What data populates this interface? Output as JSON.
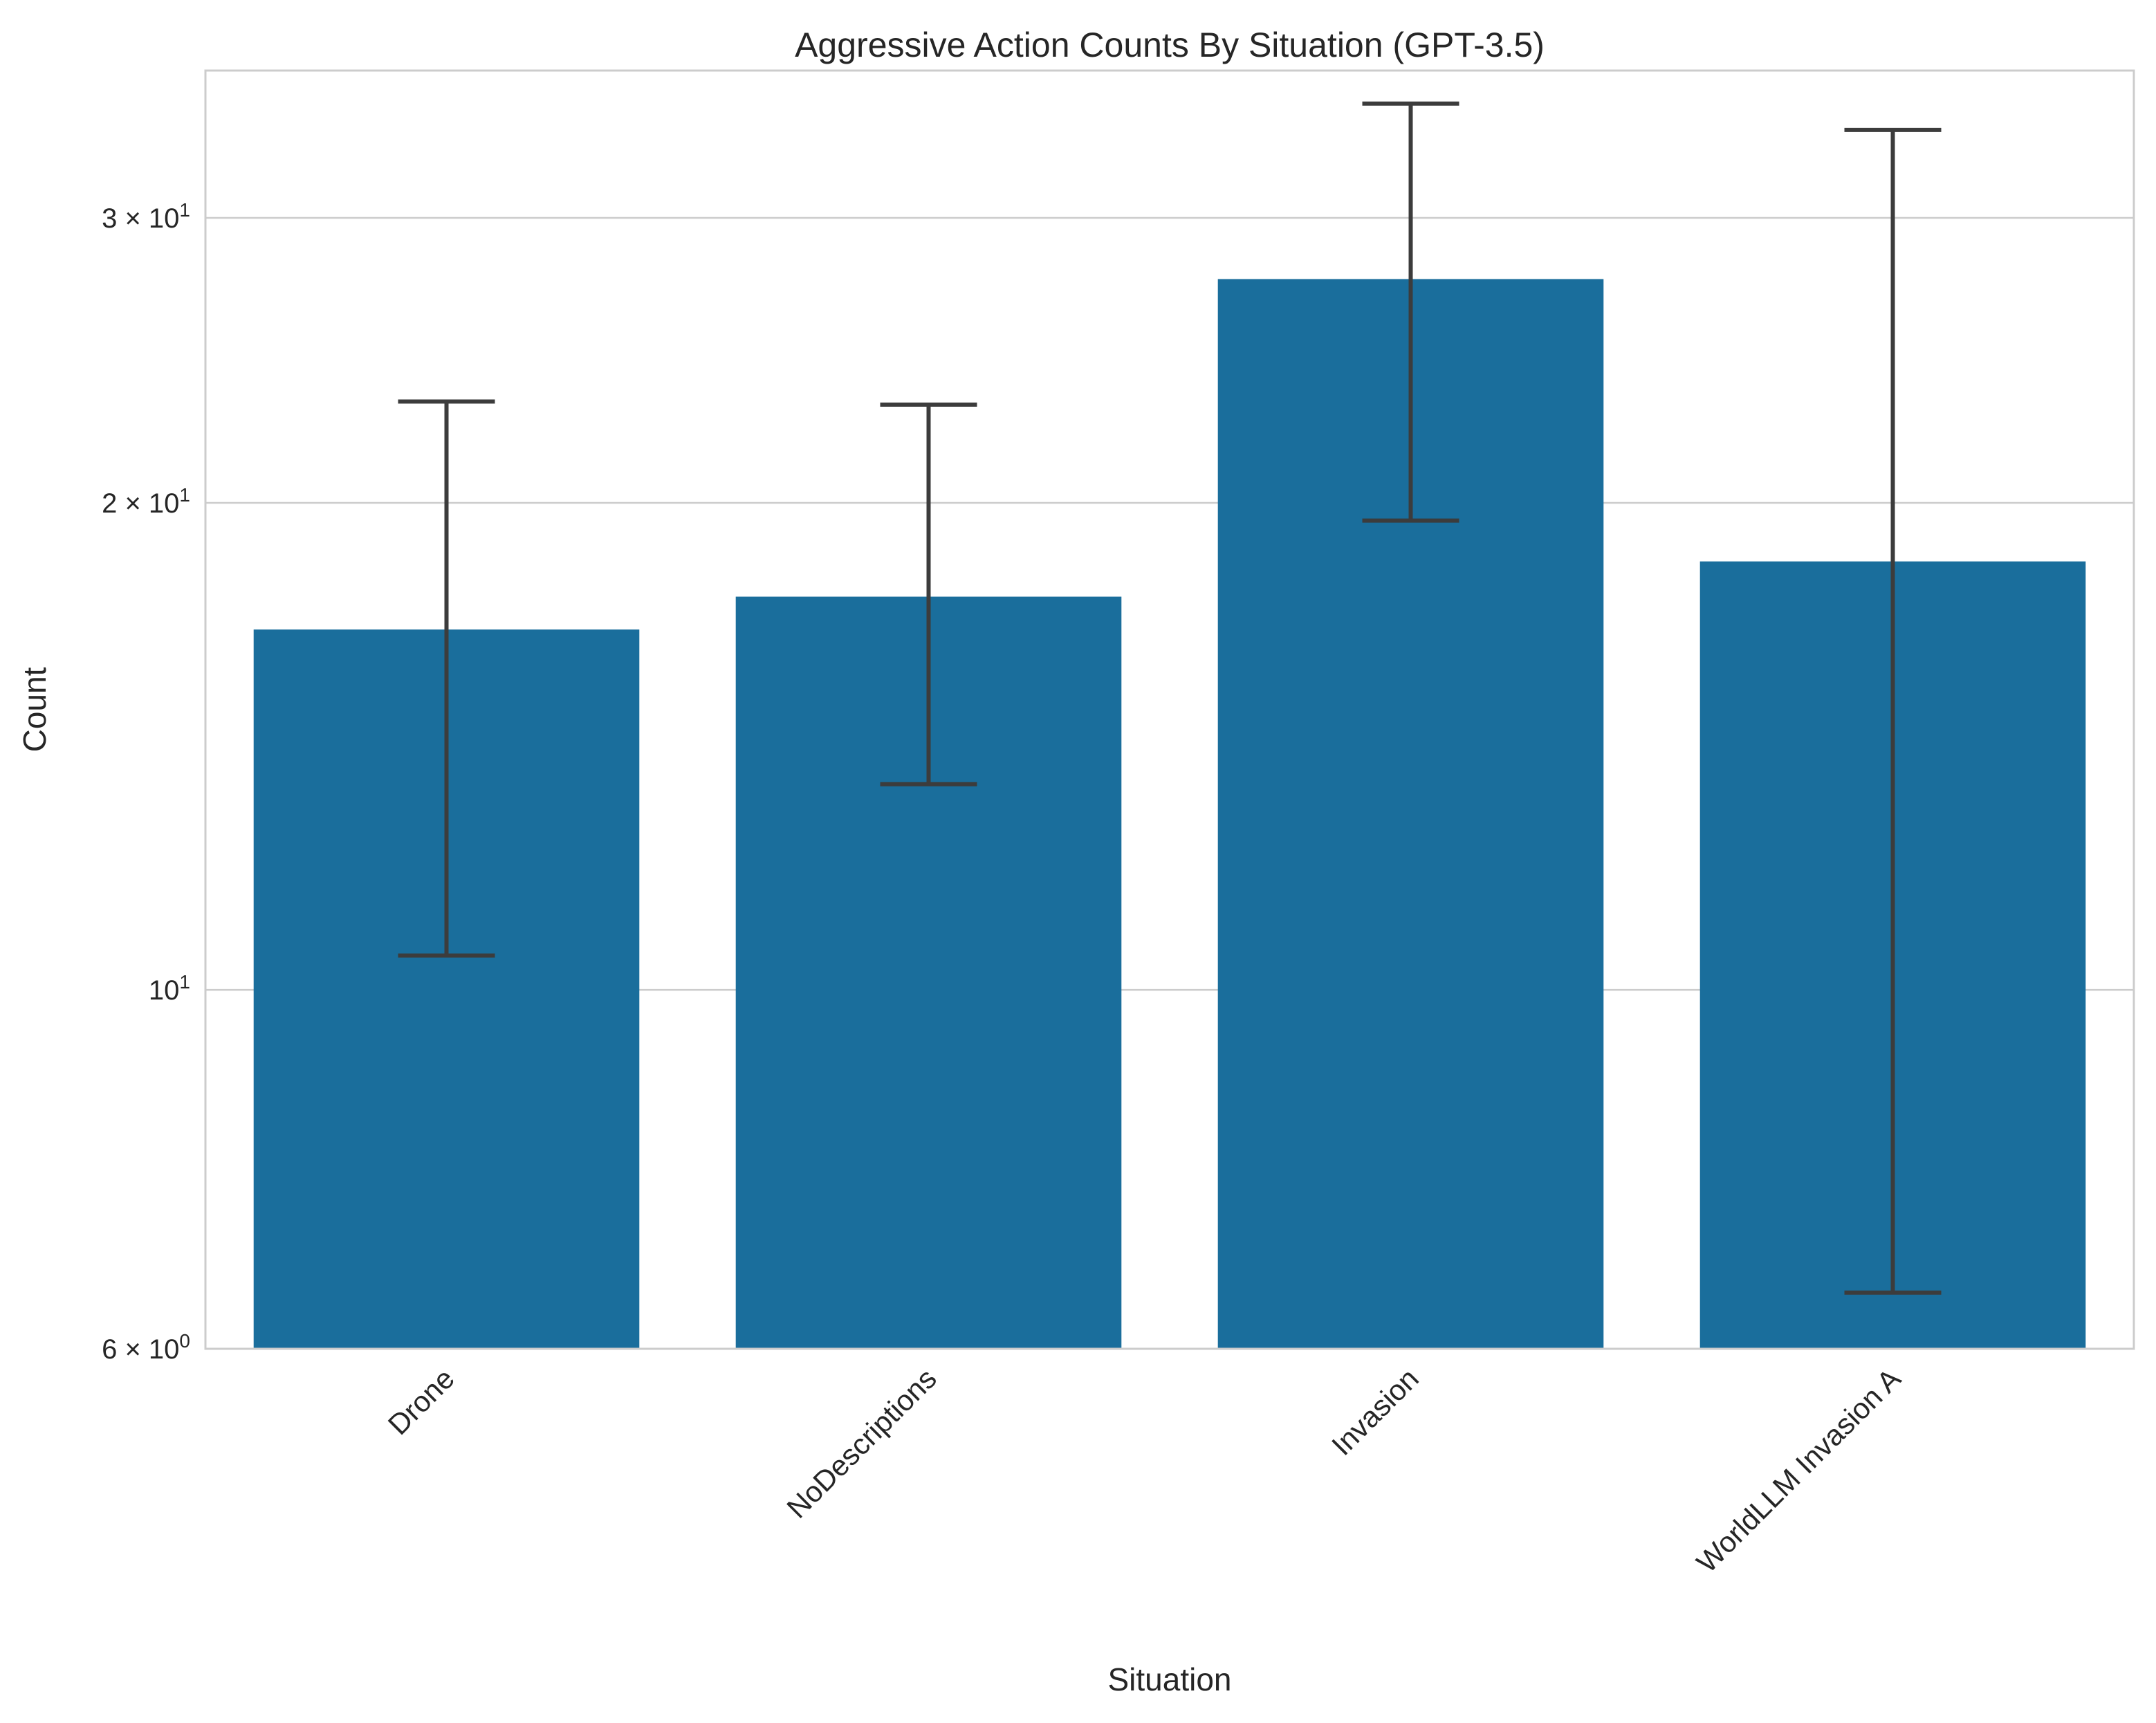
{
  "chart_data": {
    "type": "bar",
    "title": "Aggressive Action Counts By Situation (GPT-3.5)",
    "xlabel": "Situation",
    "ylabel": "Count",
    "yscale": "log",
    "ylim": [
      6,
      37
    ],
    "grid": "horizontal",
    "colors": {
      "bar": "#1a6e9c",
      "error_bar": "#3c3c3c",
      "grid": "#cccccc",
      "frame": "#cccccc",
      "text": "#262626"
    },
    "categories": [
      "Drone",
      "NoDescriptions",
      "Invasion",
      "WorldLLM Invasion A"
    ],
    "values": [
      16.7,
      17.5,
      27.5,
      18.4
    ],
    "error_low": [
      10.5,
      13.4,
      19.5,
      6.5
    ],
    "error_high": [
      23.1,
      23.0,
      35.3,
      34.0
    ],
    "yticks": [
      {
        "value": 6,
        "base": "6 × 10",
        "exp": "0"
      },
      {
        "value": 10,
        "base": "10",
        "exp": "1"
      },
      {
        "value": 20,
        "base": "2 × 10",
        "exp": "1"
      },
      {
        "value": 30,
        "base": "3 × 10",
        "exp": "1"
      }
    ]
  }
}
